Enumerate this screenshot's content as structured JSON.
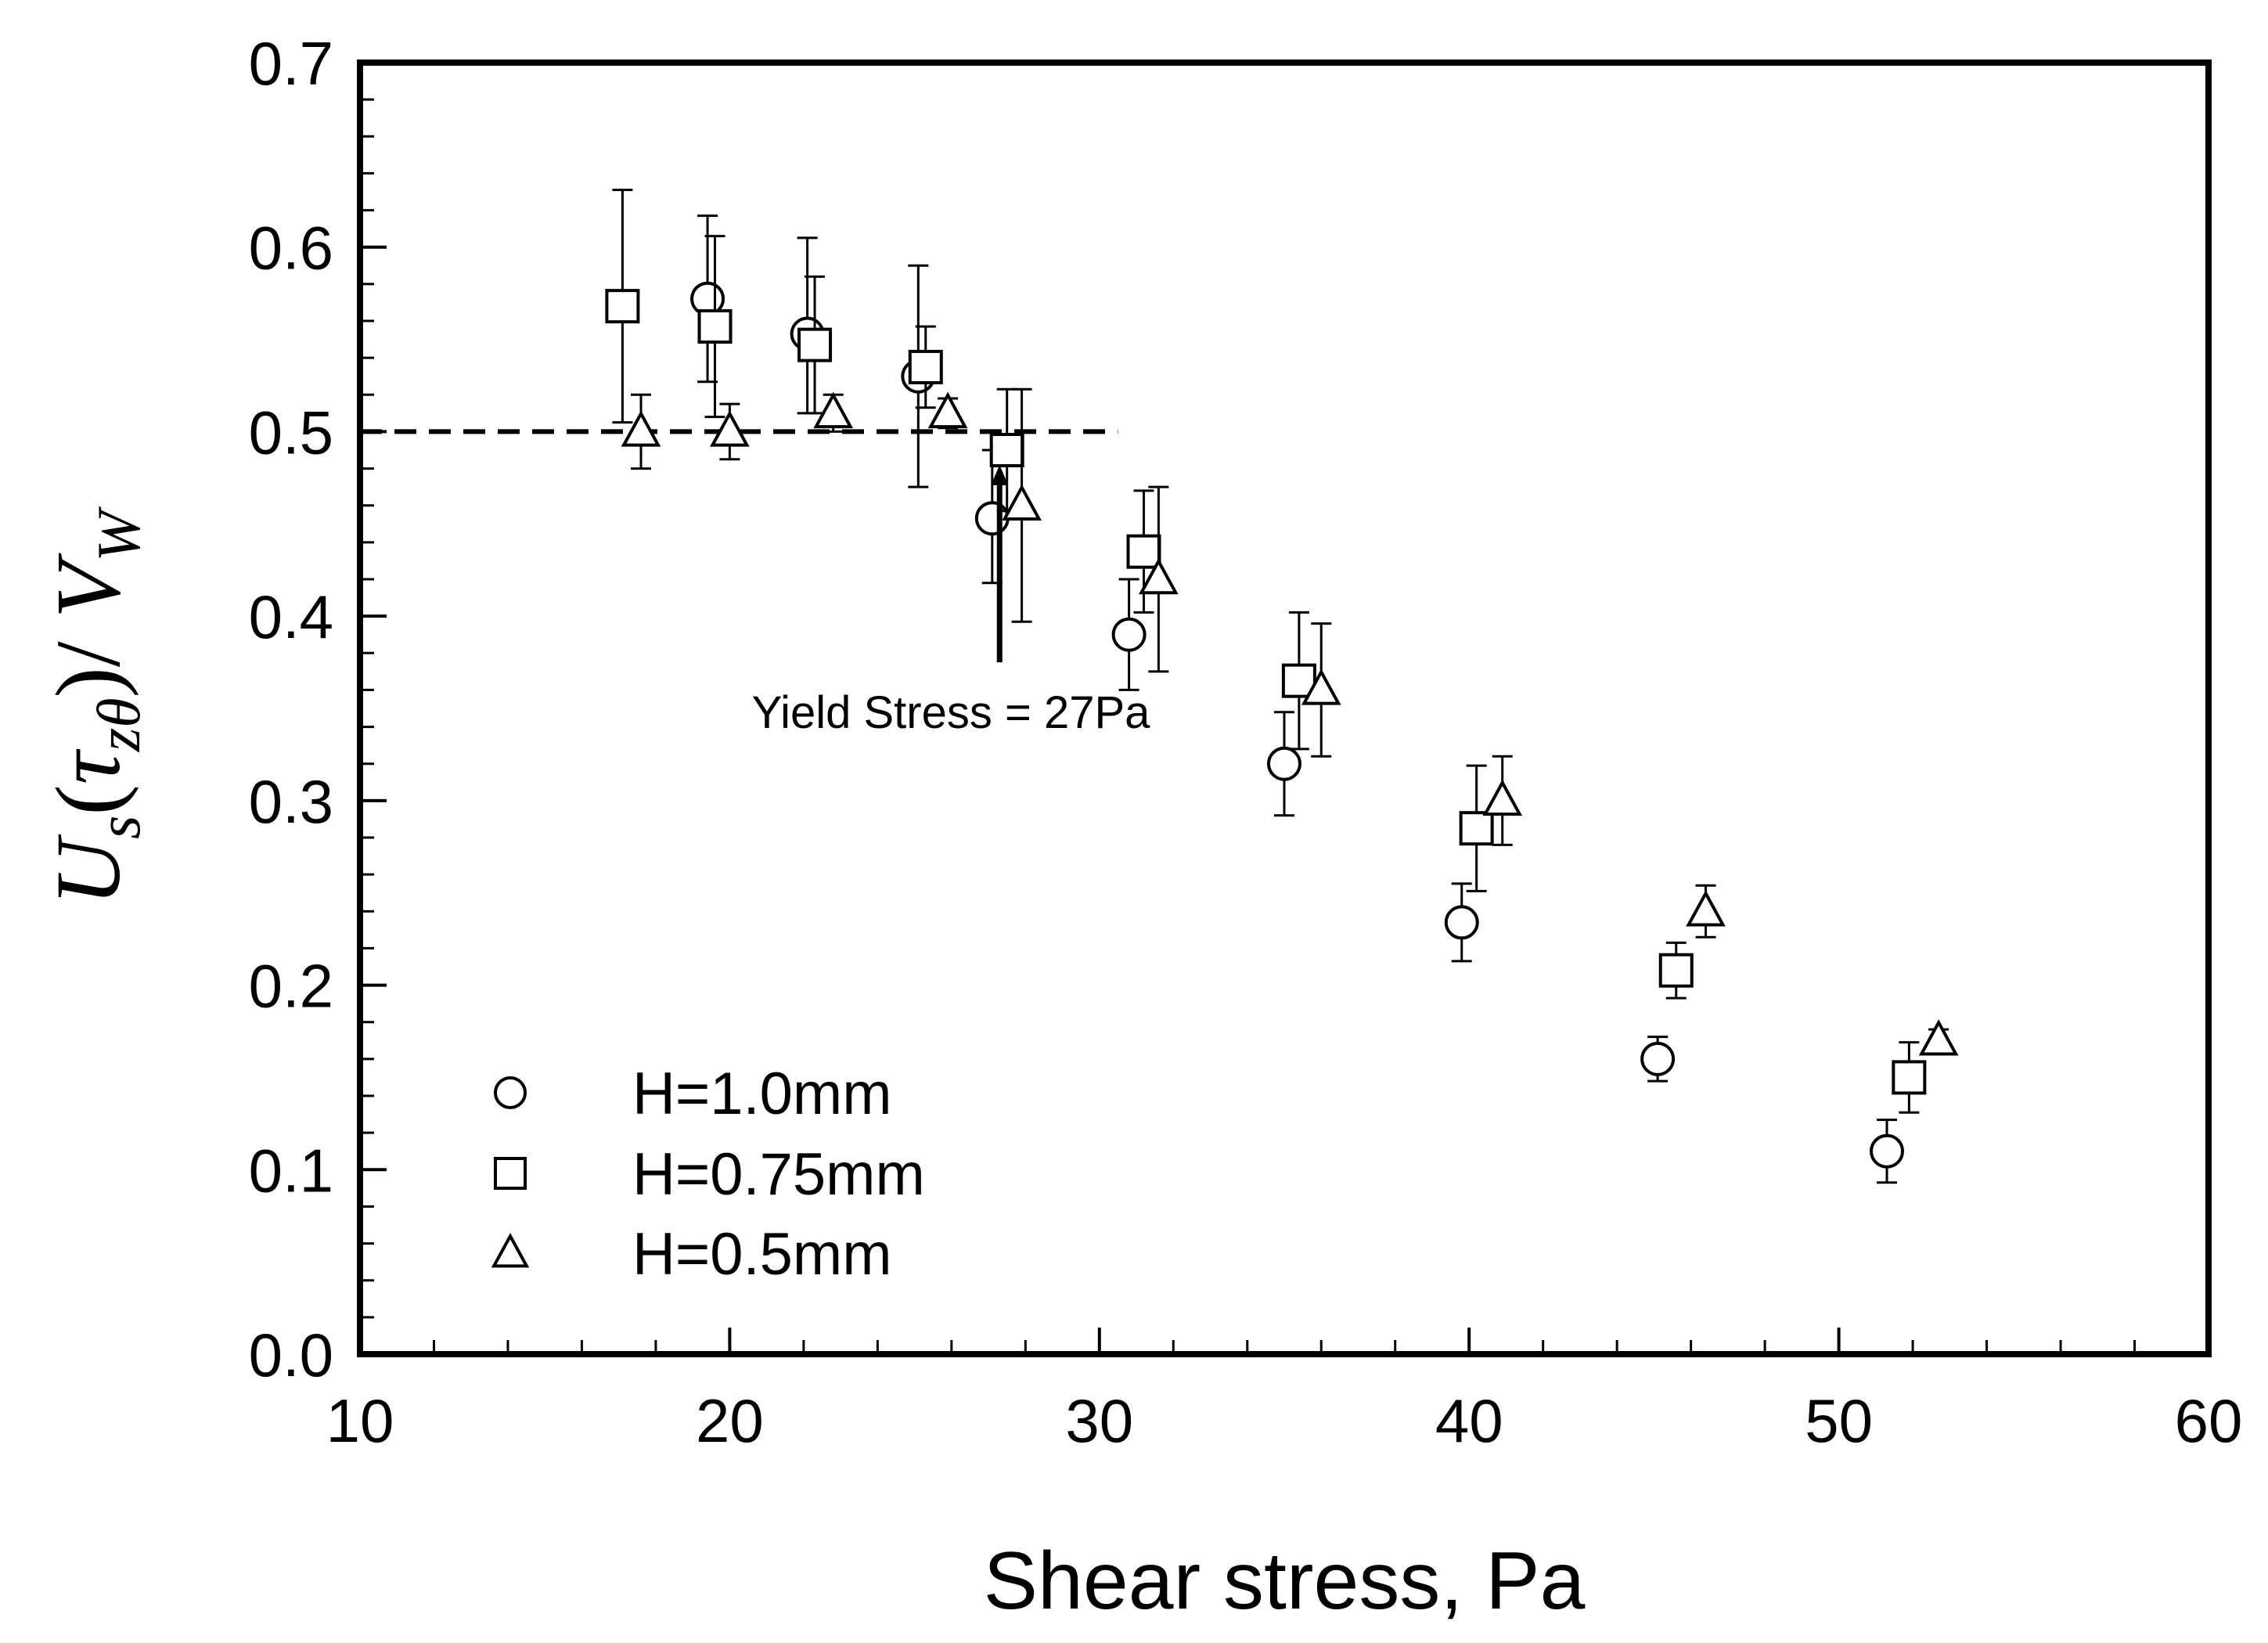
{
  "chart_data": {
    "type": "scatter",
    "title": "",
    "xlabel": "Shear stress, Pa",
    "ylabel": "Us(τzθ)/ VW",
    "ylabel_parts": {
      "U": "U",
      "s": "s",
      "open": "(",
      "tau": "τ",
      "zt": "zθ",
      "close": ")/ ",
      "V": "V",
      "W": "W"
    },
    "xlim": [
      10,
      60
    ],
    "ylim": [
      0.0,
      0.7
    ],
    "xticks": [
      10,
      20,
      30,
      40,
      50,
      60
    ],
    "xtick_labels": [
      "10",
      "20",
      "30",
      "40",
      "50",
      "60"
    ],
    "yticks": [
      0.0,
      0.1,
      0.2,
      0.3,
      0.4,
      0.5,
      0.6,
      0.7
    ],
    "ytick_labels": [
      "0.0",
      "0.1",
      "0.2",
      "0.3",
      "0.4",
      "0.5",
      "0.6",
      "0.7"
    ],
    "grid": false,
    "legend_position": "bottom-left",
    "reference_line": {
      "y": 0.5,
      "x_start": 10,
      "x_end": 30.5,
      "style": "dashed"
    },
    "annotation": {
      "text": "Yield Stress = 27Pa",
      "arrow_x": 27.3,
      "arrow_from_y": 0.375,
      "arrow_to_y": 0.482
    },
    "series": [
      {
        "name": "H=1.0mm",
        "marker": "circle",
        "points": [
          {
            "x": 19.4,
            "y": 0.572,
            "lo": 0.527,
            "hi": 0.617
          },
          {
            "x": 22.1,
            "y": 0.553,
            "lo": 0.51,
            "hi": 0.605
          },
          {
            "x": 25.1,
            "y": 0.53,
            "lo": 0.47,
            "hi": 0.59
          },
          {
            "x": 27.1,
            "y": 0.453,
            "lo": 0.418,
            "hi": 0.49
          },
          {
            "x": 30.8,
            "y": 0.39,
            "lo": 0.36,
            "hi": 0.42
          },
          {
            "x": 35.0,
            "y": 0.32,
            "lo": 0.292,
            "hi": 0.348
          },
          {
            "x": 39.8,
            "y": 0.234,
            "lo": 0.213,
            "hi": 0.255
          },
          {
            "x": 45.1,
            "y": 0.16,
            "lo": 0.148,
            "hi": 0.172
          },
          {
            "x": 51.3,
            "y": 0.11,
            "lo": 0.093,
            "hi": 0.127
          }
        ]
      },
      {
        "name": "H=0.75mm",
        "marker": "square",
        "points": [
          {
            "x": 17.1,
            "y": 0.568,
            "lo": 0.505,
            "hi": 0.631
          },
          {
            "x": 19.6,
            "y": 0.557,
            "lo": 0.508,
            "hi": 0.606
          },
          {
            "x": 22.3,
            "y": 0.547,
            "lo": 0.51,
            "hi": 0.584
          },
          {
            "x": 25.3,
            "y": 0.535,
            "lo": 0.513,
            "hi": 0.557
          },
          {
            "x": 27.5,
            "y": 0.49,
            "lo": 0.457,
            "hi": 0.523
          },
          {
            "x": 31.2,
            "y": 0.435,
            "lo": 0.402,
            "hi": 0.468
          },
          {
            "x": 35.4,
            "y": 0.365,
            "lo": 0.328,
            "hi": 0.402
          },
          {
            "x": 40.2,
            "y": 0.285,
            "lo": 0.251,
            "hi": 0.319
          },
          {
            "x": 45.6,
            "y": 0.208,
            "lo": 0.193,
            "hi": 0.223
          },
          {
            "x": 51.9,
            "y": 0.15,
            "lo": 0.131,
            "hi": 0.169
          }
        ]
      },
      {
        "name": "H=0.5mm",
        "marker": "triangle",
        "points": [
          {
            "x": 17.6,
            "y": 0.5,
            "lo": 0.48,
            "hi": 0.52
          },
          {
            "x": 20.0,
            "y": 0.5,
            "lo": 0.485,
            "hi": 0.515
          },
          {
            "x": 22.8,
            "y": 0.51,
            "lo": 0.5,
            "hi": 0.52
          },
          {
            "x": 25.9,
            "y": 0.51,
            "lo": 0.502,
            "hi": 0.518
          },
          {
            "x": 27.9,
            "y": 0.46,
            "lo": 0.397,
            "hi": 0.523
          },
          {
            "x": 31.6,
            "y": 0.42,
            "lo": 0.37,
            "hi": 0.47
          },
          {
            "x": 36.0,
            "y": 0.36,
            "lo": 0.324,
            "hi": 0.396
          },
          {
            "x": 40.9,
            "y": 0.3,
            "lo": 0.276,
            "hi": 0.324
          },
          {
            "x": 46.4,
            "y": 0.24,
            "lo": 0.226,
            "hi": 0.254
          },
          {
            "x": 52.7,
            "y": 0.17,
            "lo": 0.164,
            "hi": 0.176
          }
        ]
      }
    ]
  }
}
